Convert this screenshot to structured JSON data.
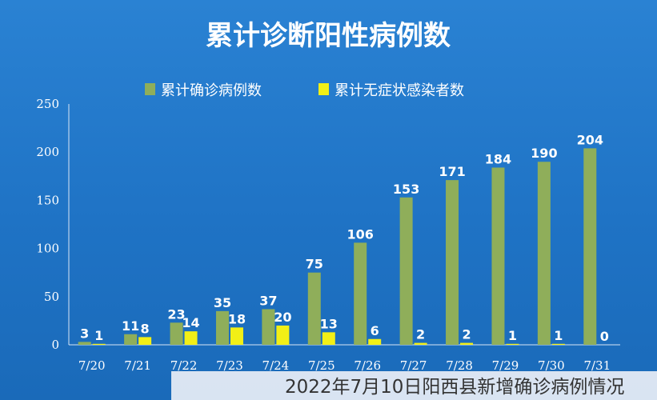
{
  "caption": "2022年7月10日阳西县新增确诊病例情况",
  "chart_data": {
    "type": "bar",
    "title": "累计诊断阳性病例数",
    "categories": [
      "7/20",
      "7/21",
      "7/22",
      "7/23",
      "7/24",
      "7/25",
      "7/26",
      "7/27",
      "7/28",
      "7/29",
      "7/30",
      "7/31"
    ],
    "series": [
      {
        "name": "累计确诊病例数",
        "color": "#8fae5a",
        "values": [
          3,
          11,
          23,
          35,
          37,
          75,
          106,
          153,
          171,
          184,
          190,
          204
        ]
      },
      {
        "name": "累计无症状感染者数",
        "color": "#f2ef16",
        "values": [
          1,
          8,
          14,
          18,
          20,
          13,
          6,
          2,
          2,
          1,
          1,
          0
        ]
      }
    ],
    "ylim": [
      0,
      250
    ],
    "yticks": [
      0,
      50,
      100,
      150,
      200,
      250
    ],
    "grid": false,
    "legend": "top",
    "data_labels": true
  }
}
